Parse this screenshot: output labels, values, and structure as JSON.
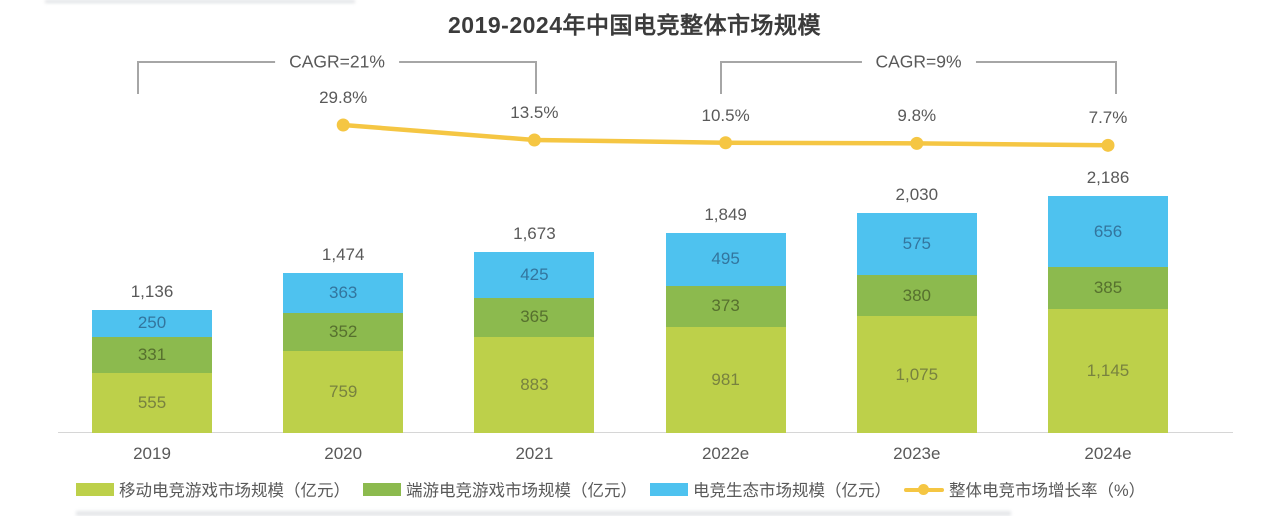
{
  "title": "2019-2024年中国电竞整体市场规模",
  "annotations": {
    "cagr_left": "CAGR=21%",
    "cagr_right": "CAGR=9%"
  },
  "chart_data": {
    "type": "bar",
    "subtype": "stacked-bar-with-line",
    "title": "2019-2024年中国电竞整体市场规模",
    "categories": [
      "2019",
      "2020",
      "2021",
      "2022e",
      "2023e",
      "2024e"
    ],
    "series": [
      {
        "name": "移动电竞游戏市场规模（亿元）",
        "values": [
          555,
          759,
          883,
          981,
          1075,
          1145
        ],
        "color": "#BDD04A",
        "label_color": "#78823F"
      },
      {
        "name": "端游电竞游戏市场规模（亿元）",
        "values": [
          331,
          352,
          365,
          373,
          380,
          385
        ],
        "color": "#8CBA4E",
        "label_color": "#56702E"
      },
      {
        "name": "电竞生态市场规模（亿元）",
        "values": [
          250,
          363,
          425,
          495,
          575,
          656
        ],
        "color": "#4EC2EF",
        "label_color": "#33759E"
      }
    ],
    "totals": [
      1136,
      1474,
      1673,
      1849,
      2030,
      2186
    ],
    "total_labels": [
      "1,136",
      "1,474",
      "1,673",
      "1,849",
      "2,030",
      "2,186"
    ],
    "segment_labels": [
      [
        "555",
        "759",
        "883",
        "981",
        "1,075",
        "1,145"
      ],
      [
        "331",
        "352",
        "365",
        "373",
        "380",
        "385"
      ],
      [
        "250",
        "363",
        "425",
        "495",
        "575",
        "656"
      ]
    ],
    "line_series": {
      "name": "整体电竞市场增长率（%）",
      "categories": [
        "2020",
        "2021",
        "2022e",
        "2023e",
        "2024e"
      ],
      "values": [
        29.8,
        13.5,
        10.5,
        9.8,
        7.7
      ],
      "labels": [
        "29.8%",
        "13.5%",
        "10.5%",
        "9.8%",
        "7.7%"
      ],
      "color": "#F5C643"
    },
    "annotations": [
      {
        "text": "CAGR=21%",
        "span_categories": [
          "2019",
          "2021"
        ]
      },
      {
        "text": "CAGR=9%",
        "span_categories": [
          "2022e",
          "2024e"
        ]
      }
    ],
    "xlabel": "",
    "ylabel": "",
    "ylim": [
      0,
      2400
    ],
    "grid": false,
    "legend_position": "bottom"
  },
  "legend": [
    {
      "label": "移动电竞游戏市场规模（亿元）",
      "color": "#BDD04A",
      "marker": "swatch"
    },
    {
      "label": "端游电竞游戏市场规模（亿元）",
      "color": "#8CBA4E",
      "marker": "swatch"
    },
    {
      "label": "电竞生态市场规模（亿元）",
      "color": "#4EC2EF",
      "marker": "swatch"
    },
    {
      "label": "整体电竞市场增长率（%）",
      "color": "#F5C643",
      "marker": "line-dot"
    }
  ],
  "text_color": "#595959"
}
